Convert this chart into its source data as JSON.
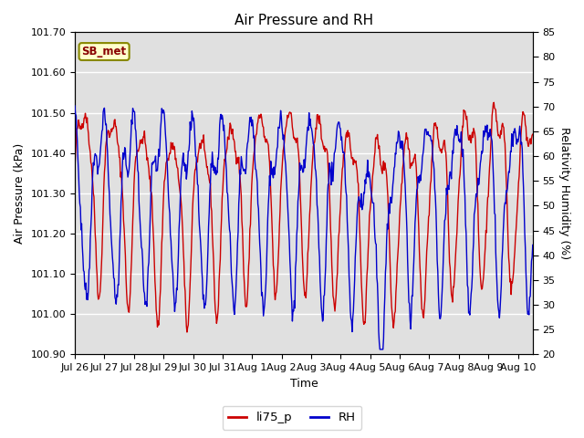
{
  "title": "Air Pressure and RH",
  "xlabel": "Time",
  "ylabel_left": "Air Pressure (kPa)",
  "ylabel_right": "Relativity Humidity (%)",
  "annotation": "SB_met",
  "ylim_left": [
    100.9,
    101.7
  ],
  "ylim_right": [
    20,
    85
  ],
  "yticks_left": [
    100.9,
    101.0,
    101.1,
    101.2,
    101.3,
    101.4,
    101.5,
    101.6,
    101.7
  ],
  "yticks_right": [
    20,
    25,
    30,
    35,
    40,
    45,
    50,
    55,
    60,
    65,
    70,
    75,
    80,
    85
  ],
  "bg_color": "#e0e0e0",
  "fig_color": "#ffffff",
  "line_color_pressure": "#cc0000",
  "line_color_rh": "#0000cc",
  "legend_label_pressure": "li75_p",
  "legend_label_rh": "RH",
  "x_tick_labels": [
    "Jul 26",
    "Jul 27",
    "Jul 28",
    "Jul 29",
    "Jul 30",
    "Jul 31",
    "Aug 1",
    "Aug 2",
    "Aug 3",
    "Aug 4",
    "Aug 5",
    "Aug 6",
    "Aug 7",
    "Aug 8",
    "Aug 9",
    "Aug 10"
  ],
  "num_days": 15.5,
  "title_fontsize": 11,
  "label_fontsize": 9,
  "tick_fontsize": 8
}
